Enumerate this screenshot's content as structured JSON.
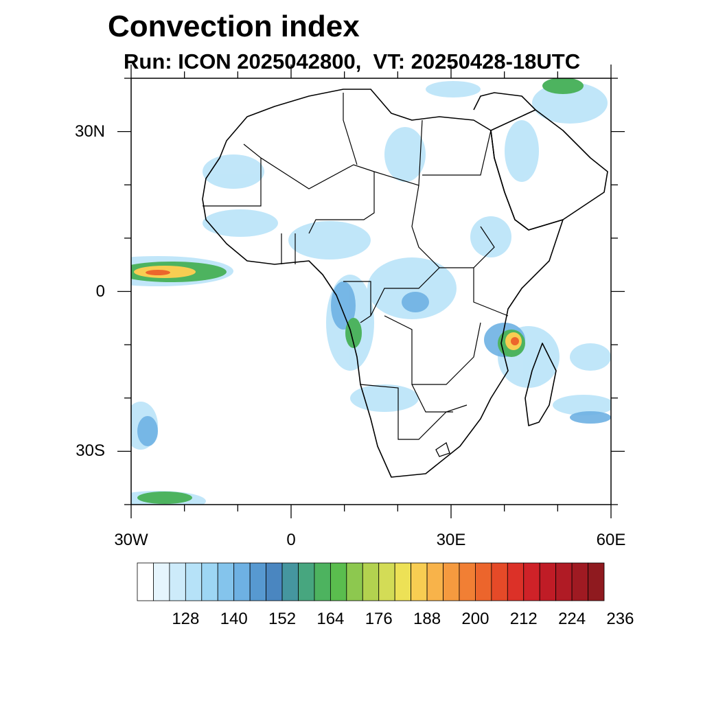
{
  "title": "Convection index",
  "subtitle": "Run: ICON 2025042800,  VT: 20250428-18UTC",
  "map": {
    "extent_lon": [
      -30,
      60
    ],
    "extent_lat": [
      -40,
      40
    ],
    "lon_ticks": [
      {
        "value": -30,
        "label": "30W"
      },
      {
        "value": 0,
        "label": "0"
      },
      {
        "value": 30,
        "label": "30E"
      },
      {
        "value": 60,
        "label": "60E"
      }
    ],
    "lat_ticks": [
      {
        "value": 30,
        "label": "30N"
      },
      {
        "value": 0,
        "label": "0"
      },
      {
        "value": -30,
        "label": "30S"
      }
    ]
  },
  "colorbar": {
    "colors": [
      "#ffffff",
      "#e6f5fd",
      "#cdebfa",
      "#b6e2f8",
      "#9dd6f4",
      "#84c4ec",
      "#6eb1e3",
      "#5799d1",
      "#4a86c0",
      "#45969f",
      "#47a67f",
      "#4db35f",
      "#5abd4e",
      "#8dc84f",
      "#b3d24f",
      "#d3dc56",
      "#ede156",
      "#f8cd52",
      "#f8b34a",
      "#f59a3f",
      "#f17f34",
      "#ec652c",
      "#e54a28",
      "#dc3128",
      "#cf2228",
      "#c01c26",
      "#b01b25",
      "#9f1a22",
      "#8f1a1f"
    ],
    "labels": [
      "128",
      "140",
      "152",
      "164",
      "176",
      "188",
      "200",
      "212",
      "224",
      "236"
    ]
  }
}
